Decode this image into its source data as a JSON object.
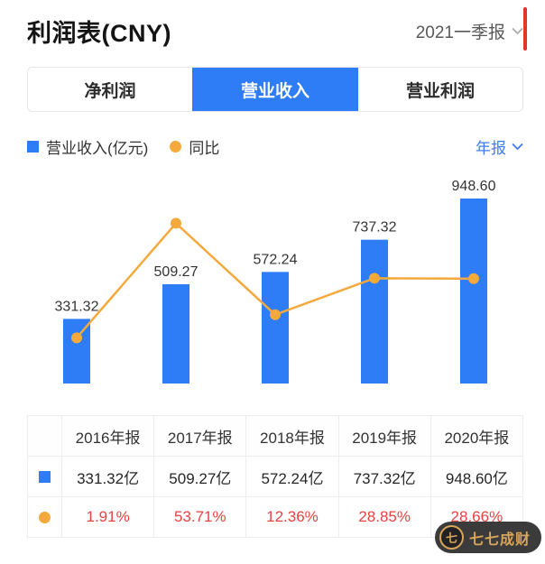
{
  "header": {
    "title": "利润表(CNY)",
    "period": "2021一季报"
  },
  "tabs": {
    "items": [
      {
        "label": "净利润"
      },
      {
        "label": "营业收入"
      },
      {
        "label": "营业利润"
      }
    ],
    "active_index": 1
  },
  "legend": {
    "bar_label": "营业收入(亿元)",
    "line_label": "同比",
    "range_label": "年报"
  },
  "colors": {
    "bar": "#2E7CF6",
    "line": "#F3A93C",
    "tab_active": "#2E7CF6",
    "pct_text": "#E64242",
    "link": "#3D7BF4"
  },
  "chart_data": {
    "type": "bar",
    "categories": [
      "2016年报",
      "2017年报",
      "2018年报",
      "2019年报",
      "2020年报"
    ],
    "series": [
      {
        "name": "营业收入(亿元)",
        "type": "bar",
        "values": [
          331.32,
          509.27,
          572.24,
          737.32,
          948.6
        ]
      },
      {
        "name": "同比",
        "type": "line",
        "unit": "%",
        "values": [
          1.91,
          53.71,
          12.36,
          28.85,
          28.66
        ]
      }
    ],
    "ylim": [
      0,
      1000
    ],
    "y2lim": [
      0,
      60
    ],
    "grid": false,
    "legend_position": "top",
    "value_labels": [
      "331.32",
      "509.27",
      "572.24",
      "737.32",
      "948.60"
    ]
  },
  "table": {
    "column_headers": [
      "2016年报",
      "2017年报",
      "2018年报",
      "2019年报",
      "2020年报"
    ],
    "revenue_row": [
      "331.32亿",
      "509.27亿",
      "572.24亿",
      "737.32亿",
      "948.60亿"
    ],
    "yoy_row": [
      "1.91%",
      "53.71%",
      "12.36%",
      "28.85%",
      "28.66%"
    ]
  },
  "watermark": {
    "text": "七七成财",
    "logo_char": "七"
  }
}
